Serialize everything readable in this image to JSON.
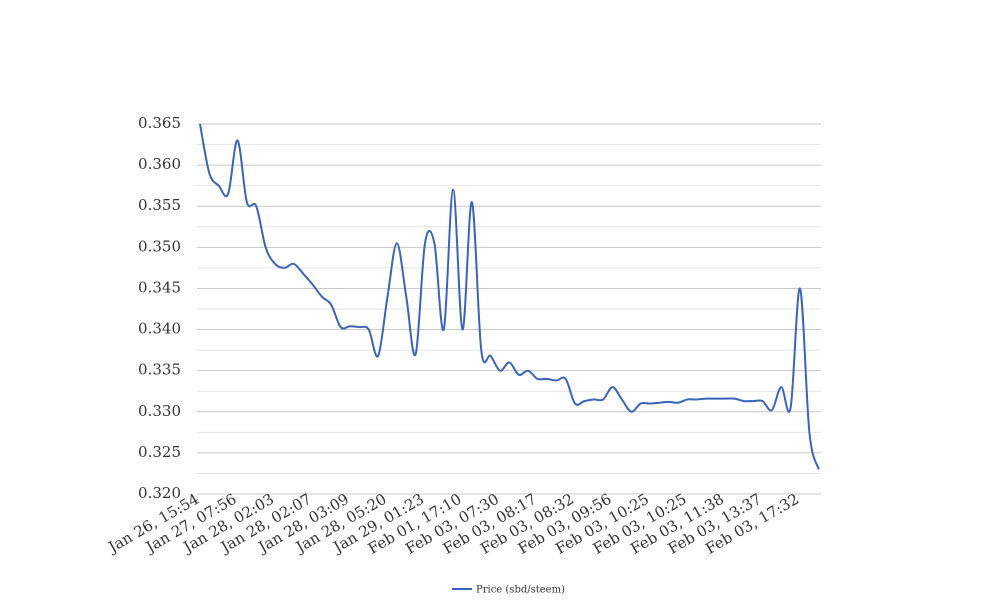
{
  "chart_data": {
    "type": "line",
    "categories": [
      "Jan 26, 15:54",
      null,
      null,
      null,
      "Jan 27, 07:56",
      null,
      null,
      null,
      "Jan 28, 02:03",
      null,
      null,
      null,
      "Jan 28, 02:07",
      null,
      null,
      null,
      "Jan 28, 03:09",
      null,
      null,
      null,
      "Jan 28, 05:20",
      null,
      null,
      null,
      "Jan 29, 01:23",
      null,
      null,
      null,
      "Feb 01, 17:10",
      null,
      null,
      null,
      "Feb 03, 07:30",
      null,
      null,
      null,
      "Feb 03, 08:17",
      null,
      null,
      null,
      "Feb 03, 08:32",
      null,
      null,
      null,
      "Feb 03, 09:56",
      null,
      null,
      null,
      "Feb 03, 10:25",
      null,
      null,
      null,
      "Feb 03, 10:25",
      null,
      null,
      null,
      "Feb 03, 11:38",
      null,
      null,
      null,
      "Feb 03, 13:37",
      null,
      null,
      null,
      "Feb 03, 17:32",
      null,
      null
    ],
    "series": [
      {
        "name": "Price (sbd/steem)",
        "color": "#3a64b8",
        "values": [
          0.365,
          0.359,
          0.3575,
          0.3565,
          0.363,
          0.3555,
          0.355,
          0.35,
          0.348,
          0.3475,
          0.348,
          0.3468,
          0.3455,
          0.344,
          0.343,
          0.3403,
          0.3404,
          0.3403,
          0.34,
          0.3368,
          0.344,
          0.3505,
          0.344,
          0.337,
          0.3505,
          0.3505,
          0.34,
          0.357,
          0.34,
          0.3555,
          0.3375,
          0.3368,
          0.335,
          0.336,
          0.3345,
          0.335,
          0.334,
          0.334,
          0.3338,
          0.334,
          0.331,
          0.3313,
          0.3315,
          0.3315,
          0.333,
          0.3315,
          0.33,
          0.331,
          0.331,
          0.3311,
          0.3312,
          0.3311,
          0.3315,
          0.3315,
          0.3316,
          0.3316,
          0.3316,
          0.3316,
          0.3313,
          0.3313,
          0.3313,
          0.3302,
          0.333,
          0.3305,
          0.345,
          0.3275,
          0.323
        ]
      }
    ],
    "ylim": [
      0.32,
      0.365
    ],
    "yticks": [
      {
        "value": 0.32,
        "label": "0.320"
      },
      0.325,
      {
        "value": 0.33,
        "label": "0.330"
      },
      0.335,
      {
        "value": 0.34,
        "label": "0.340"
      },
      0.345,
      {
        "value": 0.35,
        "label": "0.350"
      },
      0.355,
      {
        "value": 0.36,
        "label": "0.360"
      },
      0.365
    ],
    "grid": true,
    "minor_grid": true,
    "legend": "bottom"
  }
}
